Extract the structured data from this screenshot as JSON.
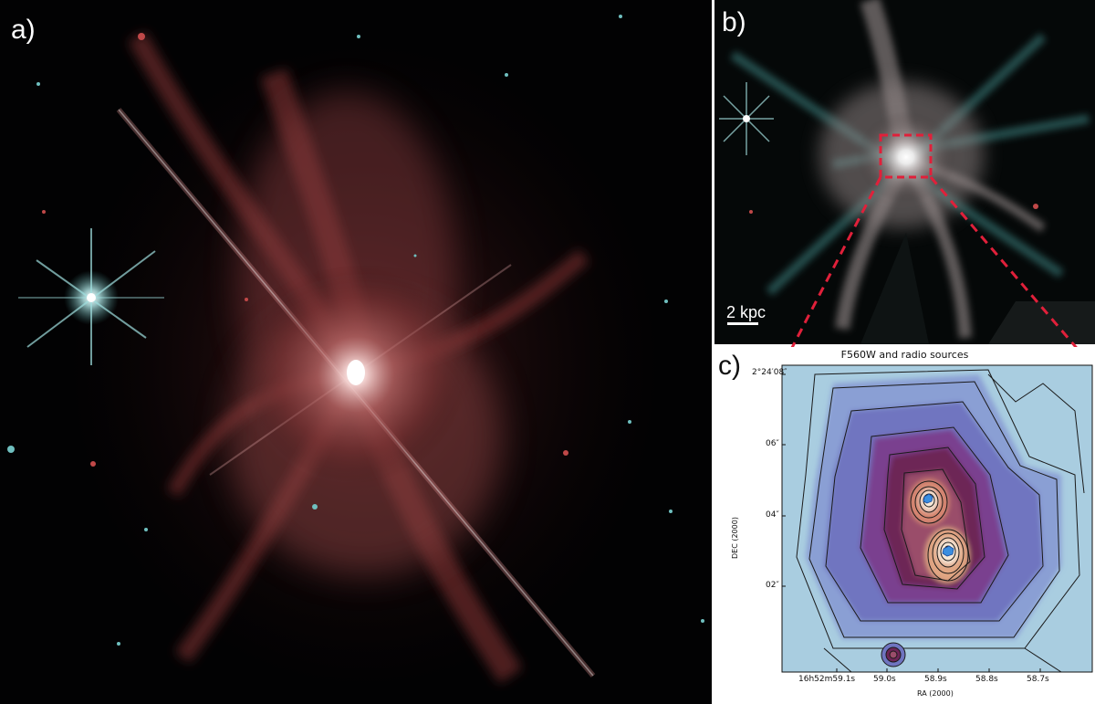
{
  "panels": {
    "a": {
      "label": "a)"
    },
    "b": {
      "label": "b)",
      "scale_bar": "2 kpc"
    },
    "c": {
      "label": "c)",
      "title": "F560W and radio sources",
      "x_axis_label": "RA (2000)",
      "y_axis_label": "DEC (2000)",
      "x_ticks": [
        "16h52m59.1s",
        "59.0s",
        "58.9s",
        "58.8s",
        "58.7s"
      ],
      "y_ticks": [
        "2°24′08″",
        "06″",
        "04″",
        "02″"
      ]
    }
  },
  "colors": {
    "nebula_red": "#b0474a",
    "star_cyan": "#9fe0e0",
    "highlight_box": "#e0203a"
  }
}
